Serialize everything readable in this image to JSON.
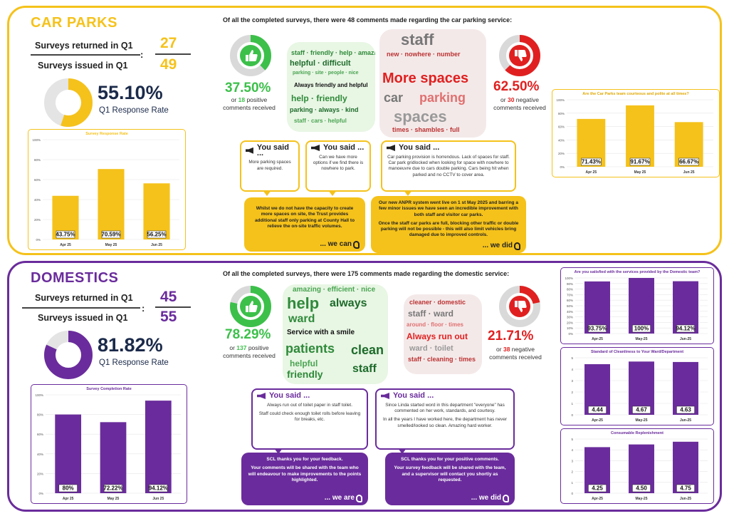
{
  "colors": {
    "yellow": "#f5c21b",
    "purple": "#6a2c9c",
    "green": "#3cc04a",
    "red": "#e02020",
    "navy": "#1b2a4a"
  },
  "carparks": {
    "title": "CAR PARKS",
    "returned_label": "Surveys returned in Q1",
    "issued_label": "Surveys issued in Q1",
    "returned": "27",
    "issued": "49",
    "ratio_sep": ":",
    "rate": "55.10%",
    "rate_label": "Q1 Response Rate",
    "rate_value": 55.1,
    "headline": "Of all the completed surveys, there were 48 comments made regarding the car parking service:",
    "positive_pct": "37.50%",
    "positive_pre": "or ",
    "positive_count": "18",
    "positive_post": " positive",
    "positive_line2": "comments received",
    "positive_value": 37.5,
    "negative_pct": "62.50%",
    "negative_pre": "or ",
    "negative_count": "30",
    "negative_post": " negative",
    "negative_line2": "comments received",
    "negative_value": 62.5,
    "pos_cloud_phrase": "Always friendly and helpful",
    "neg_cloud_phrase1": "More spaces",
    "neg_cloud_phrase2": "car",
    "neg_cloud_phrase3": "parking",
    "neg_cloud_phrase4": "spaces",
    "neg_cloud_phrase5": "staff",
    "you_said": "You said ...",
    "said1": "More parking spaces are required.",
    "said2": "Can we have more options if we find there is nowhere to park.",
    "said3": "Car parking provision is horrendous.  Lack of spaces for staff. Car park gridlocked when looking for space with nowhere to manoeuvre due to cars double parking.  Cars being hit when parked and no CCTV to cover area.",
    "reply1": "Whilst we do not have the capacity to create more spaces on site, the Trust provides additional staff only parking at County Hall to relieve the on-site traffic volumes.",
    "reply1_sig": "... we can",
    "reply2_p1": "Our new ANPR system went live on 1 st May 2025 and barring a few minor issues we have seen an incredible improvement with both staff and visitor car parks.",
    "reply2_p2": "Once the staff car parks are full, blocking other traffic or double parking will not be possible  - this will also limit vehicles bring damaged due to improved controls.",
    "reply2_sig": "... we did"
  },
  "domestics": {
    "title": "DOMESTICS",
    "returned_label": "Surveys returned in Q1",
    "issued_label": "Surveys issued in Q1",
    "returned": "45",
    "issued": "55",
    "ratio_sep": ":",
    "rate": "81.82%",
    "rate_label": "Q1 Response Rate",
    "rate_value": 81.82,
    "headline": "Of all the completed surveys, there were 175 comments made regarding the domestic service:",
    "positive_pct": "78.29%",
    "positive_pre": "or ",
    "positive_count": "137",
    "positive_post": " positive",
    "positive_line2": "comments received",
    "positive_value": 78.29,
    "negative_pct": "21.71%",
    "negative_pre": "or ",
    "negative_count": "38",
    "negative_post": " negative",
    "negative_line2": "comments received",
    "negative_value": 21.71,
    "pos_cloud_phrase": "Service with a smile",
    "pos_cloud_w1": "help",
    "pos_cloud_w2": "ward",
    "pos_cloud_w3": "patients",
    "pos_cloud_w4": "clean",
    "pos_cloud_w5": "friendly",
    "pos_cloud_w6": "staff",
    "neg_cloud_phrase": "Always run out",
    "you_said": "You said ...",
    "said1_p1": "Always run out of toilet paper in staff toilet.",
    "said1_p2": "Staff could check enough toilet rolls before leaving for breaks, etc.",
    "said2_p1": "Since Linda started word in this department \"everyone\" has commented on her work, standards, and courtesy.",
    "said2_p2": "In all the years I have worked here, the department has never smelled/looked so clean.  Amazing hard worker.",
    "reply1_p1": "SCL thanks you for your feedback.",
    "reply1_p2": "Your comments will be shared with the team who will endeavour to make improvements to the points highlighted.",
    "reply1_sig": "... we are",
    "reply2_p1": "SCL thanks you for your positive comments.",
    "reply2_p2": "Your survey feedback will be shared with the team, and a supervisor will contact you shortly as requested.",
    "reply2_sig": "... we did"
  },
  "chart_data": [
    {
      "id": "cp_response",
      "type": "bar",
      "title": "Survey Response Rate",
      "categories": [
        "Apr 25",
        "May 25",
        "Jun 25"
      ],
      "values": [
        43.75,
        70.59,
        56.25
      ],
      "labels": [
        "43.75%",
        "70.59%",
        "56.25%"
      ],
      "ylim": [
        0,
        100
      ],
      "yticks": [
        "0%",
        "20%",
        "40%",
        "60%",
        "80%",
        "100%"
      ],
      "ytick_values": [
        0,
        20,
        40,
        60,
        80,
        100
      ],
      "grid": true
    },
    {
      "id": "cp_courteous",
      "type": "bar",
      "title": "Are the Car Parks team courteous and polite at all times?",
      "categories": [
        "Apr 25",
        "May 25",
        "Jun 25"
      ],
      "values": [
        71.43,
        91.67,
        66.67
      ],
      "labels": [
        "71.43%",
        "91.67%",
        "66.67%"
      ],
      "ylim": [
        0,
        100
      ],
      "yticks": [
        "0%",
        "20%",
        "40%",
        "60%",
        "80%",
        "100%"
      ],
      "ytick_values": [
        0,
        20,
        40,
        60,
        80,
        100
      ],
      "grid": true
    },
    {
      "id": "dom_completion",
      "type": "bar",
      "title": "Survey Completion Rate",
      "categories": [
        "Apr 25",
        "May 25",
        "Jun 25"
      ],
      "values": [
        80,
        72.22,
        94.12
      ],
      "labels": [
        "80%",
        "72.22%",
        "94.12%"
      ],
      "ylim": [
        0,
        100
      ],
      "yticks": [
        "0%",
        "20%",
        "40%",
        "60%",
        "80%",
        "100%"
      ],
      "ytick_values": [
        0,
        20,
        40,
        60,
        80,
        100
      ],
      "grid": true
    },
    {
      "id": "dom_satisfied",
      "type": "bar",
      "title": "Are you satisfied with the services provided by the Domestic team?",
      "categories": [
        "Apr-25",
        "May-25",
        "Jun-25"
      ],
      "values": [
        93.75,
        100,
        94.12
      ],
      "labels": [
        "93.75%",
        "100%",
        "94.12%"
      ],
      "ylim": [
        0,
        100
      ],
      "yticks": [
        "0%",
        "10%",
        "20%",
        "30%",
        "40%",
        "50%",
        "60%",
        "70%",
        "80%",
        "90%",
        "100%"
      ],
      "ytick_values": [
        0,
        10,
        20,
        30,
        40,
        50,
        60,
        70,
        80,
        90,
        100
      ],
      "grid": true
    },
    {
      "id": "dom_cleanliness",
      "type": "bar",
      "title": "Standard of Cleanliness to Your Ward/Department",
      "categories": [
        "Apr-25",
        "May-25",
        "Jun-25"
      ],
      "values": [
        4.44,
        4.67,
        4.63
      ],
      "labels": [
        "4.44",
        "4.67",
        "4.63"
      ],
      "ylim": [
        0,
        5
      ],
      "yticks": [
        "0",
        "1",
        "2",
        "3",
        "4",
        "5"
      ],
      "ytick_values": [
        0,
        1,
        2,
        3,
        4,
        5
      ],
      "grid": true
    },
    {
      "id": "dom_consumable",
      "type": "bar",
      "title": "Consumable Replenishment",
      "categories": [
        "Apr-25",
        "May-25",
        "Jun-25"
      ],
      "values": [
        4.25,
        4.5,
        4.75
      ],
      "labels": [
        "4.25",
        "4.50",
        "4.75"
      ],
      "ylim": [
        0,
        5
      ],
      "yticks": [
        "0",
        "1",
        "2",
        "3",
        "4",
        "5"
      ],
      "ytick_values": [
        0,
        1,
        2,
        3,
        4,
        5
      ],
      "grid": true
    }
  ]
}
